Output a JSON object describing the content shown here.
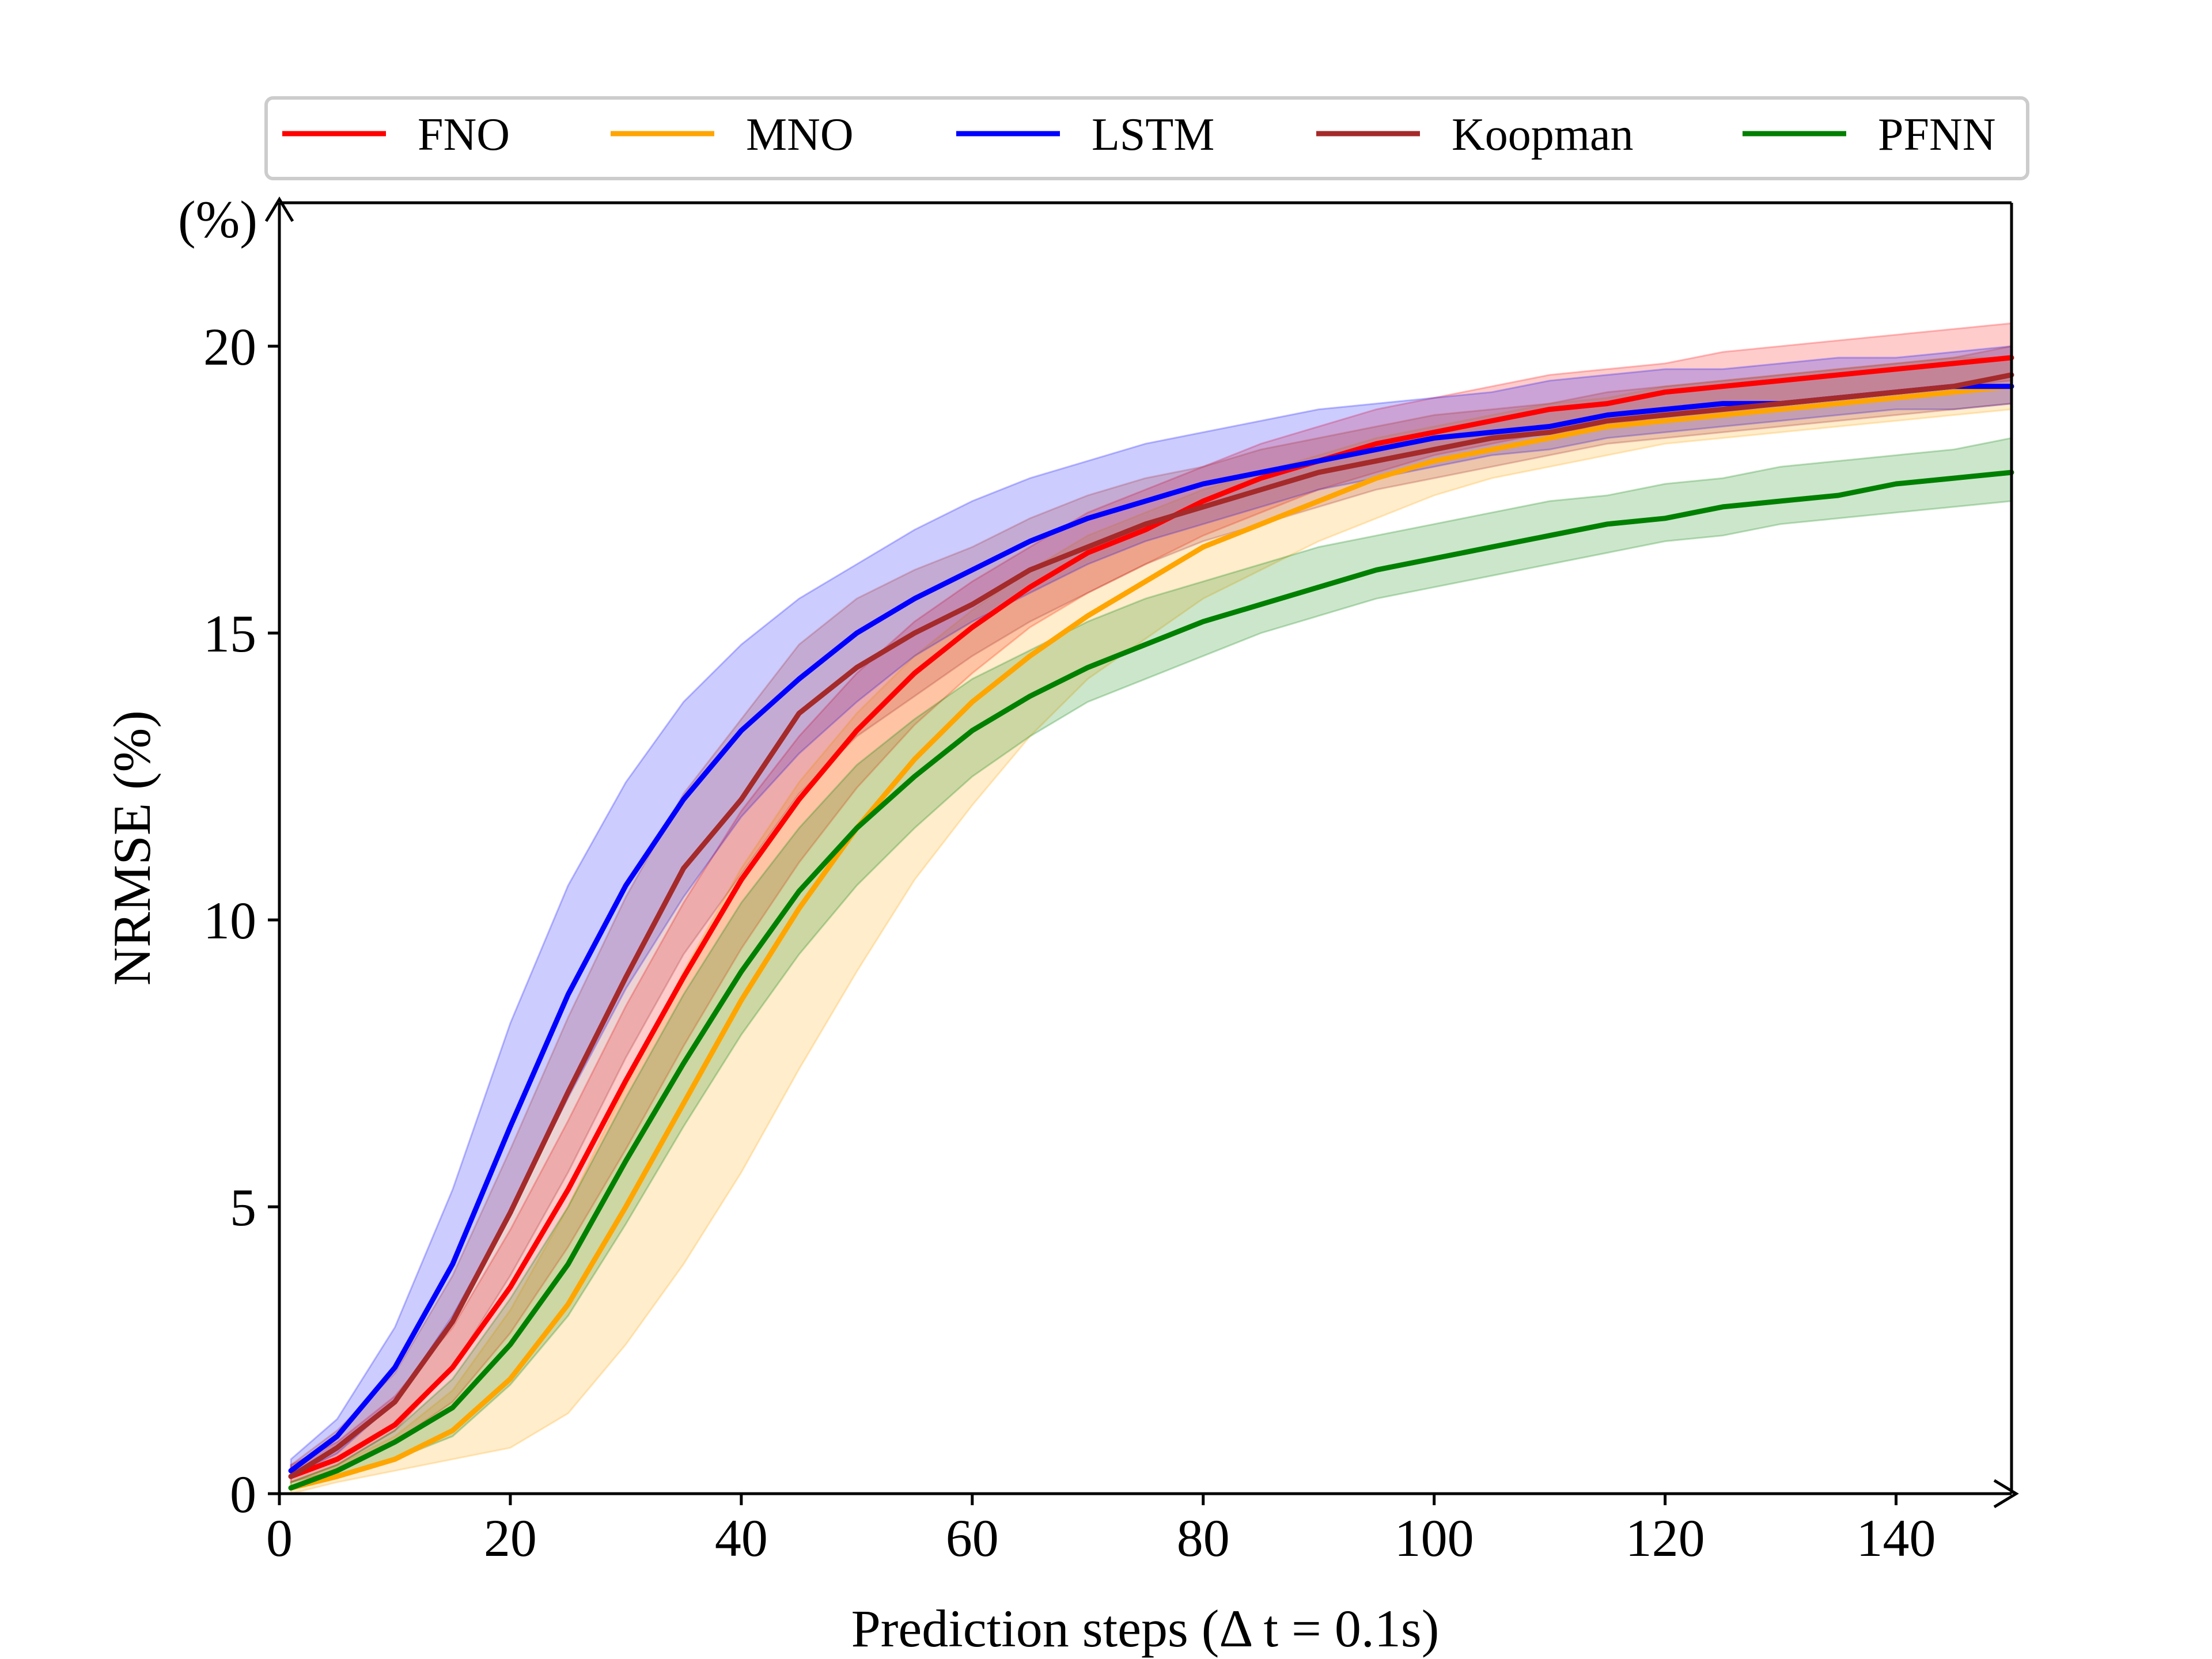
{
  "chart_data": {
    "type": "line",
    "title": "",
    "xlabel": "Prediction steps (Δ t = 0.1s)",
    "ylabel": "NRMSE (%)",
    "y_unit_label": "(%)",
    "xlim": [
      0,
      150
    ],
    "ylim": [
      0,
      22.5
    ],
    "xticks": [
      0,
      20,
      40,
      60,
      80,
      100,
      120,
      140
    ],
    "yticks": [
      0,
      5,
      10,
      15,
      20
    ],
    "grid": false,
    "legend_position": "top, outside, horizontal",
    "x": [
      1,
      5,
      10,
      15,
      20,
      25,
      30,
      35,
      40,
      45,
      50,
      55,
      60,
      65,
      70,
      75,
      80,
      85,
      90,
      95,
      100,
      105,
      110,
      115,
      120,
      125,
      130,
      135,
      140,
      145,
      150
    ],
    "series": [
      {
        "name": "FNO",
        "color": "#ff0000",
        "values": [
          0.3,
          0.6,
          1.2,
          2.2,
          3.6,
          5.3,
          7.2,
          9.0,
          10.7,
          12.1,
          13.3,
          14.3,
          15.1,
          15.8,
          16.4,
          16.8,
          17.3,
          17.7,
          18.0,
          18.3,
          18.5,
          18.7,
          18.9,
          19.0,
          19.2,
          19.3,
          19.4,
          19.5,
          19.6,
          19.7,
          19.8
        ],
        "lower": [
          0.2,
          0.4,
          0.9,
          1.6,
          2.8,
          4.3,
          6.0,
          7.8,
          9.5,
          11.0,
          12.3,
          13.4,
          14.3,
          15.1,
          15.7,
          16.2,
          16.7,
          17.1,
          17.5,
          17.8,
          18.1,
          18.3,
          18.5,
          18.6,
          18.8,
          18.9,
          19.0,
          19.1,
          19.2,
          19.3,
          19.4
        ],
        "upper": [
          0.5,
          0.9,
          1.7,
          2.9,
          4.6,
          6.5,
          8.5,
          10.3,
          11.9,
          13.2,
          14.3,
          15.2,
          15.9,
          16.5,
          17.1,
          17.5,
          17.9,
          18.3,
          18.6,
          18.9,
          19.1,
          19.3,
          19.5,
          19.6,
          19.7,
          19.9,
          20.0,
          20.1,
          20.2,
          20.3,
          20.4
        ]
      },
      {
        "name": "MNO",
        "color": "#ffa500",
        "values": [
          0.1,
          0.3,
          0.6,
          1.1,
          2.0,
          3.3,
          5.0,
          6.8,
          8.6,
          10.2,
          11.6,
          12.8,
          13.8,
          14.6,
          15.3,
          15.9,
          16.5,
          16.9,
          17.3,
          17.7,
          18.0,
          18.2,
          18.4,
          18.6,
          18.7,
          18.8,
          18.9,
          19.0,
          19.1,
          19.2,
          19.3
        ],
        "lower": [
          0.0,
          0.2,
          0.4,
          0.6,
          0.8,
          1.4,
          2.6,
          4.0,
          5.6,
          7.4,
          9.1,
          10.7,
          12.0,
          13.2,
          14.2,
          14.9,
          15.6,
          16.1,
          16.6,
          17.0,
          17.4,
          17.7,
          17.9,
          18.1,
          18.3,
          18.4,
          18.5,
          18.6,
          18.7,
          18.8,
          18.9
        ],
        "upper": [
          0.2,
          0.5,
          1.0,
          1.8,
          3.2,
          5.0,
          7.1,
          9.1,
          10.9,
          12.4,
          13.6,
          14.6,
          15.4,
          16.1,
          16.7,
          17.1,
          17.5,
          17.8,
          18.1,
          18.4,
          18.6,
          18.8,
          19.0,
          19.1,
          19.3,
          19.4,
          19.5,
          19.6,
          19.7,
          19.8,
          19.8
        ]
      },
      {
        "name": "LSTM",
        "color": "#0000ff",
        "values": [
          0.4,
          1.0,
          2.2,
          4.0,
          6.4,
          8.7,
          10.6,
          12.1,
          13.3,
          14.2,
          15.0,
          15.6,
          16.1,
          16.6,
          17.0,
          17.3,
          17.6,
          17.8,
          18.0,
          18.2,
          18.4,
          18.5,
          18.6,
          18.8,
          18.9,
          19.0,
          19.0,
          19.1,
          19.2,
          19.3,
          19.3
        ],
        "lower": [
          0.3,
          0.7,
          1.6,
          3.1,
          4.9,
          6.9,
          8.8,
          10.4,
          11.8,
          12.9,
          13.8,
          14.6,
          15.2,
          15.7,
          16.2,
          16.6,
          16.9,
          17.2,
          17.5,
          17.7,
          17.9,
          18.1,
          18.2,
          18.4,
          18.5,
          18.6,
          18.7,
          18.8,
          18.9,
          18.9,
          19.0
        ],
        "upper": [
          0.6,
          1.3,
          2.9,
          5.3,
          8.2,
          10.6,
          12.4,
          13.8,
          14.8,
          15.6,
          16.2,
          16.8,
          17.3,
          17.7,
          18.0,
          18.3,
          18.5,
          18.7,
          18.9,
          19.0,
          19.1,
          19.2,
          19.4,
          19.5,
          19.6,
          19.6,
          19.7,
          19.8,
          19.8,
          19.9,
          20.0
        ]
      },
      {
        "name": "Koopman",
        "color": "#a52a2a",
        "values": [
          0.3,
          0.8,
          1.6,
          3.0,
          4.9,
          7.0,
          9.0,
          10.9,
          12.1,
          13.6,
          14.4,
          15.0,
          15.5,
          16.1,
          16.5,
          16.9,
          17.2,
          17.5,
          17.8,
          18.0,
          18.2,
          18.4,
          18.5,
          18.7,
          18.8,
          18.9,
          19.0,
          19.1,
          19.2,
          19.3,
          19.5
        ],
        "lower": [
          0.2,
          0.5,
          1.1,
          2.2,
          3.8,
          5.6,
          7.6,
          9.4,
          10.8,
          12.2,
          13.2,
          13.9,
          14.6,
          15.2,
          15.7,
          16.2,
          16.6,
          16.9,
          17.2,
          17.5,
          17.7,
          17.9,
          18.1,
          18.3,
          18.4,
          18.5,
          18.6,
          18.7,
          18.8,
          18.9,
          19.0
        ],
        "upper": [
          0.5,
          1.1,
          2.1,
          3.8,
          6.0,
          8.3,
          10.4,
          12.2,
          13.5,
          14.8,
          15.6,
          16.1,
          16.5,
          17.0,
          17.4,
          17.7,
          17.9,
          18.2,
          18.4,
          18.6,
          18.8,
          18.9,
          19.0,
          19.2,
          19.3,
          19.4,
          19.5,
          19.6,
          19.7,
          19.8,
          20.0
        ]
      },
      {
        "name": "PFNN",
        "color": "#008000",
        "values": [
          0.1,
          0.4,
          0.9,
          1.5,
          2.6,
          4.0,
          5.8,
          7.5,
          9.1,
          10.5,
          11.6,
          12.5,
          13.3,
          13.9,
          14.4,
          14.8,
          15.2,
          15.5,
          15.8,
          16.1,
          16.3,
          16.5,
          16.7,
          16.9,
          17.0,
          17.2,
          17.3,
          17.4,
          17.6,
          17.7,
          17.8
        ],
        "lower": [
          0.1,
          0.3,
          0.6,
          1.0,
          1.9,
          3.1,
          4.7,
          6.4,
          8.0,
          9.4,
          10.6,
          11.6,
          12.5,
          13.2,
          13.8,
          14.2,
          14.6,
          15.0,
          15.3,
          15.6,
          15.8,
          16.0,
          16.2,
          16.4,
          16.6,
          16.7,
          16.9,
          17.0,
          17.1,
          17.2,
          17.3
        ],
        "upper": [
          0.2,
          0.5,
          1.1,
          2.0,
          3.4,
          5.0,
          6.9,
          8.7,
          10.3,
          11.6,
          12.7,
          13.5,
          14.2,
          14.7,
          15.2,
          15.6,
          15.9,
          16.2,
          16.5,
          16.7,
          16.9,
          17.1,
          17.3,
          17.4,
          17.6,
          17.7,
          17.9,
          18.0,
          18.1,
          18.2,
          18.4
        ]
      }
    ]
  }
}
